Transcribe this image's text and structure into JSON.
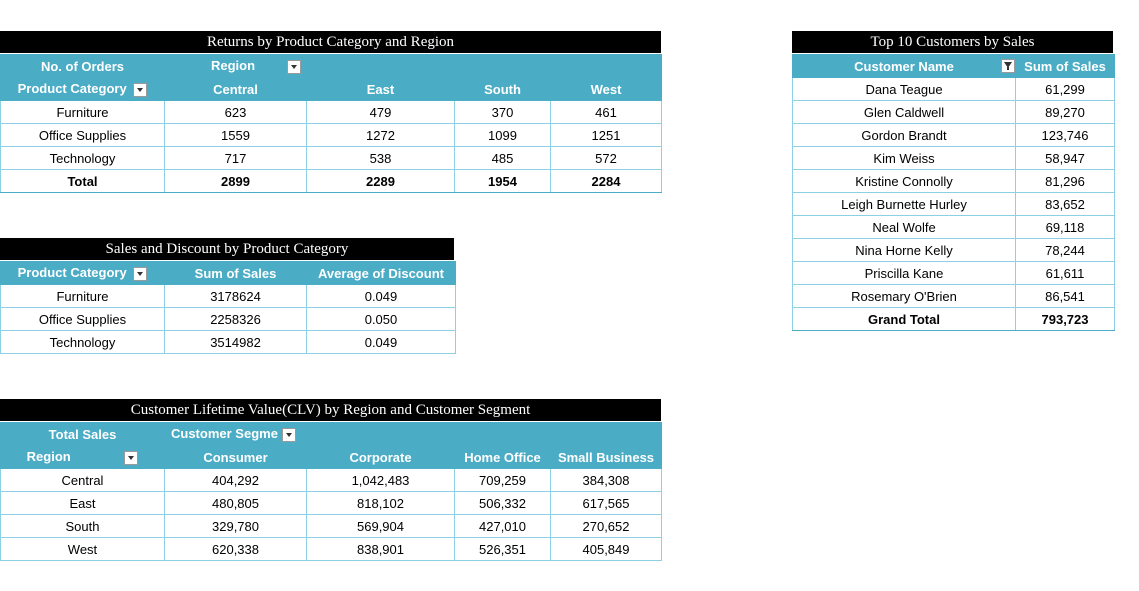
{
  "returns": {
    "title": "Returns by Product Category and Region",
    "corner_label": "No. of Orders",
    "region_filter_label": "Region",
    "row_field_label": "Product Category",
    "columns": [
      "Central",
      "East",
      "South",
      "West"
    ],
    "rows": [
      {
        "label": "Furniture",
        "values": [
          "623",
          "479",
          "370",
          "461"
        ]
      },
      {
        "label": "Office Supplies",
        "values": [
          "1559",
          "1272",
          "1099",
          "1251"
        ]
      },
      {
        "label": "Technology",
        "values": [
          "717",
          "538",
          "485",
          "572"
        ]
      }
    ],
    "total": {
      "label": "Total",
      "values": [
        "2899",
        "2289",
        "1954",
        "2284"
      ]
    }
  },
  "sales_discount": {
    "title": "Sales and Discount by Product Category",
    "headers": [
      "Product Category",
      "Sum of Sales",
      "Average of Discount"
    ],
    "rows": [
      {
        "label": "Furniture",
        "sales": "3178624",
        "discount": "0.049"
      },
      {
        "label": "Office Supplies",
        "sales": "2258326",
        "discount": "0.050"
      },
      {
        "label": "Technology",
        "sales": "3514982",
        "discount": "0.049"
      }
    ]
  },
  "clv": {
    "title": "Customer Lifetime Value(CLV) by Region and Customer Segment",
    "corner_label": "Total Sales",
    "segment_filter_label": "Customer Segme",
    "row_field_label": "Region",
    "columns": [
      "Consumer",
      "Corporate",
      "Home Office",
      "Small Business"
    ],
    "rows": [
      {
        "label": "Central",
        "values": [
          "404,292",
          "1,042,483",
          "709,259",
          "384,308"
        ]
      },
      {
        "label": "East",
        "values": [
          "480,805",
          "818,102",
          "506,332",
          "617,565"
        ]
      },
      {
        "label": "South",
        "values": [
          "329,780",
          "569,904",
          "427,010",
          "270,652"
        ]
      },
      {
        "label": "West",
        "values": [
          "620,338",
          "838,901",
          "526,351",
          "405,849"
        ]
      }
    ]
  },
  "top10": {
    "title": "Top 10 Customers by Sales",
    "headers": [
      "Customer Name",
      "Sum of Sales"
    ],
    "rows": [
      {
        "name": "Dana Teague",
        "sales": "61,299"
      },
      {
        "name": "Glen Caldwell",
        "sales": "89,270"
      },
      {
        "name": "Gordon Brandt",
        "sales": "123,746"
      },
      {
        "name": "Kim Weiss",
        "sales": "58,947"
      },
      {
        "name": "Kristine Connolly",
        "sales": "81,296"
      },
      {
        "name": "Leigh Burnette Hurley",
        "sales": "83,652"
      },
      {
        "name": "Neal Wolfe",
        "sales": "69,118"
      },
      {
        "name": "Nina Horne Kelly",
        "sales": "78,244"
      },
      {
        "name": "Priscilla Kane",
        "sales": "61,611"
      },
      {
        "name": "Rosemary O'Brien",
        "sales": "86,541"
      }
    ],
    "total": {
      "label": "Grand Total",
      "sales": "793,723"
    }
  },
  "colors": {
    "header_bg": "#4bacc6",
    "title_bg": "#000000",
    "grid": "#8fcfe3"
  }
}
